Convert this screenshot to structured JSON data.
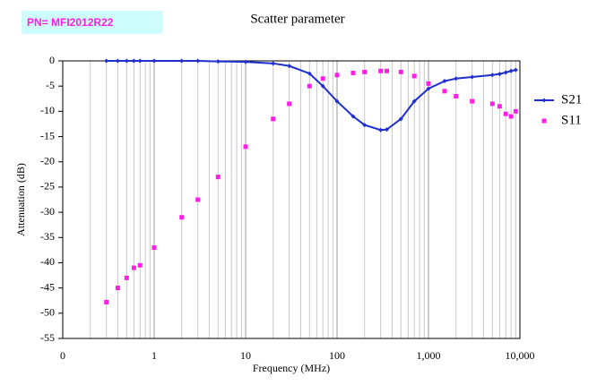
{
  "part_number": "PN= MFI2012R22",
  "chart_data": {
    "type": "line",
    "title": "Scatter parameter",
    "xlabel": "Frequency (MHz)",
    "ylabel": "Attenuation (dB)",
    "xscale": "log",
    "grid": true,
    "legend": "right",
    "xlim": [
      0.1,
      10000
    ],
    "xticks": [
      {
        "value": 0.1,
        "label": "0"
      },
      1,
      10,
      100,
      {
        "value": 1000,
        "label": "1,000"
      },
      {
        "value": 10000,
        "label": "10,000"
      }
    ],
    "ylim": [
      -55,
      0
    ],
    "yticks": [
      0,
      -5,
      -10,
      -15,
      -20,
      -25,
      -30,
      -35,
      -40,
      -45,
      -50,
      -55
    ],
    "x": [
      0.3,
      0.4,
      0.5,
      0.6,
      0.7,
      1,
      2,
      3,
      5,
      10,
      20,
      30,
      50,
      70,
      100,
      150,
      200,
      300,
      350,
      500,
      700,
      1000,
      1500,
      2000,
      3000,
      5000,
      6000,
      7000,
      8000,
      9000
    ],
    "series": [
      {
        "name": "S21",
        "color": "#1f2fd0",
        "marker": "diamond",
        "line": true,
        "values": [
          0,
          0,
          0,
          0,
          0,
          0,
          0,
          0,
          -0.1,
          -0.2,
          -0.5,
          -1,
          -2.5,
          -5,
          -8,
          -11,
          -12.7,
          -13.7,
          -13.6,
          -11.5,
          -8,
          -5.5,
          -4,
          -3.5,
          -3.2,
          -2.8,
          -2.6,
          -2.3,
          -2,
          -1.8
        ]
      },
      {
        "name": "S11",
        "color": "#ff1ee6",
        "marker": "square",
        "line": false,
        "values": [
          -47.8,
          -45,
          -43,
          -41,
          -40.5,
          -37,
          -31,
          -27.5,
          -23,
          -17,
          -11.5,
          -8.5,
          -5,
          -3.5,
          -2.8,
          -2.4,
          -2.2,
          -2,
          -2,
          -2.2,
          -3,
          -4.5,
          -6,
          -7,
          -8,
          -8.5,
          -9,
          -10.5,
          -11,
          -10
        ]
      }
    ]
  }
}
